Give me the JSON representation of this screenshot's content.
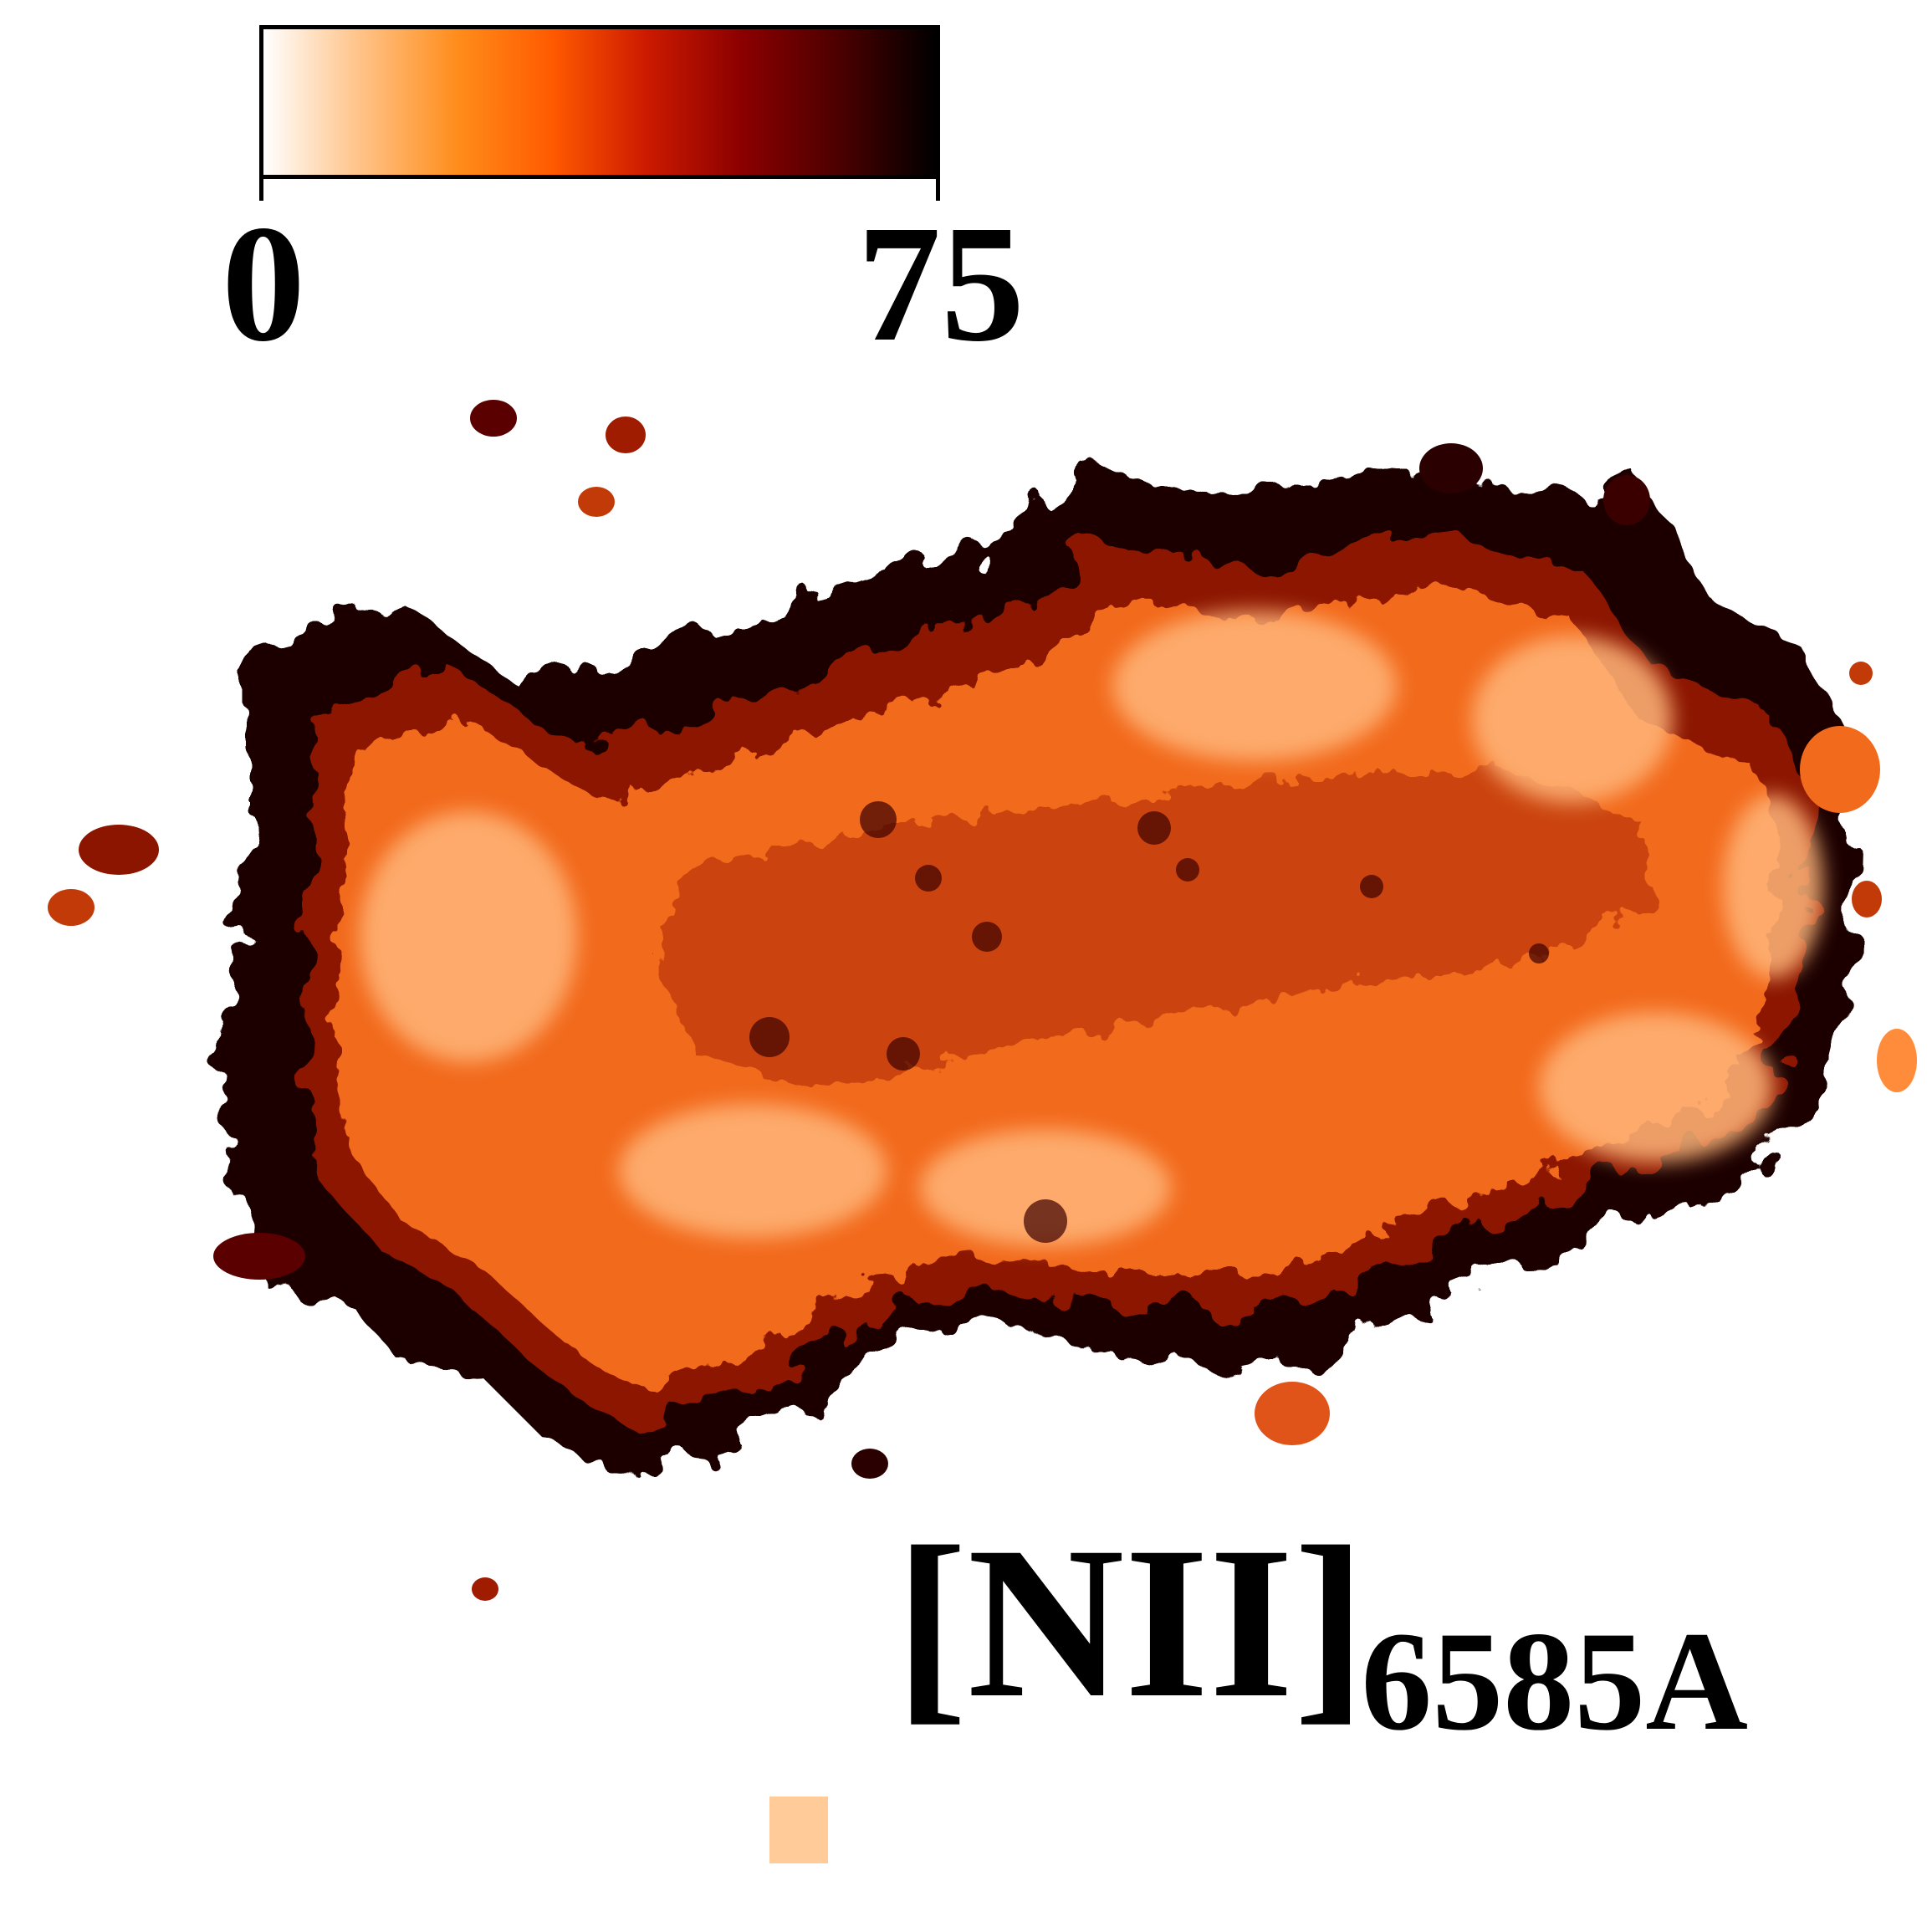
{
  "colorbar": {
    "min_label": "0",
    "max_label": "75",
    "colormap": [
      "#ffffff",
      "#ffc48a",
      "#ff8c1a",
      "#ff5a00",
      "#cc1a00",
      "#8c0000",
      "#4a0000",
      "#000000"
    ]
  },
  "map": {
    "line_name": "[NII]",
    "wavelength": "6585A",
    "fill_colors": {
      "edge": "#1a0000",
      "rim": "#8c1500",
      "body": "#f26a1b",
      "core": "#c23a08",
      "light": "#ffb67a"
    }
  }
}
